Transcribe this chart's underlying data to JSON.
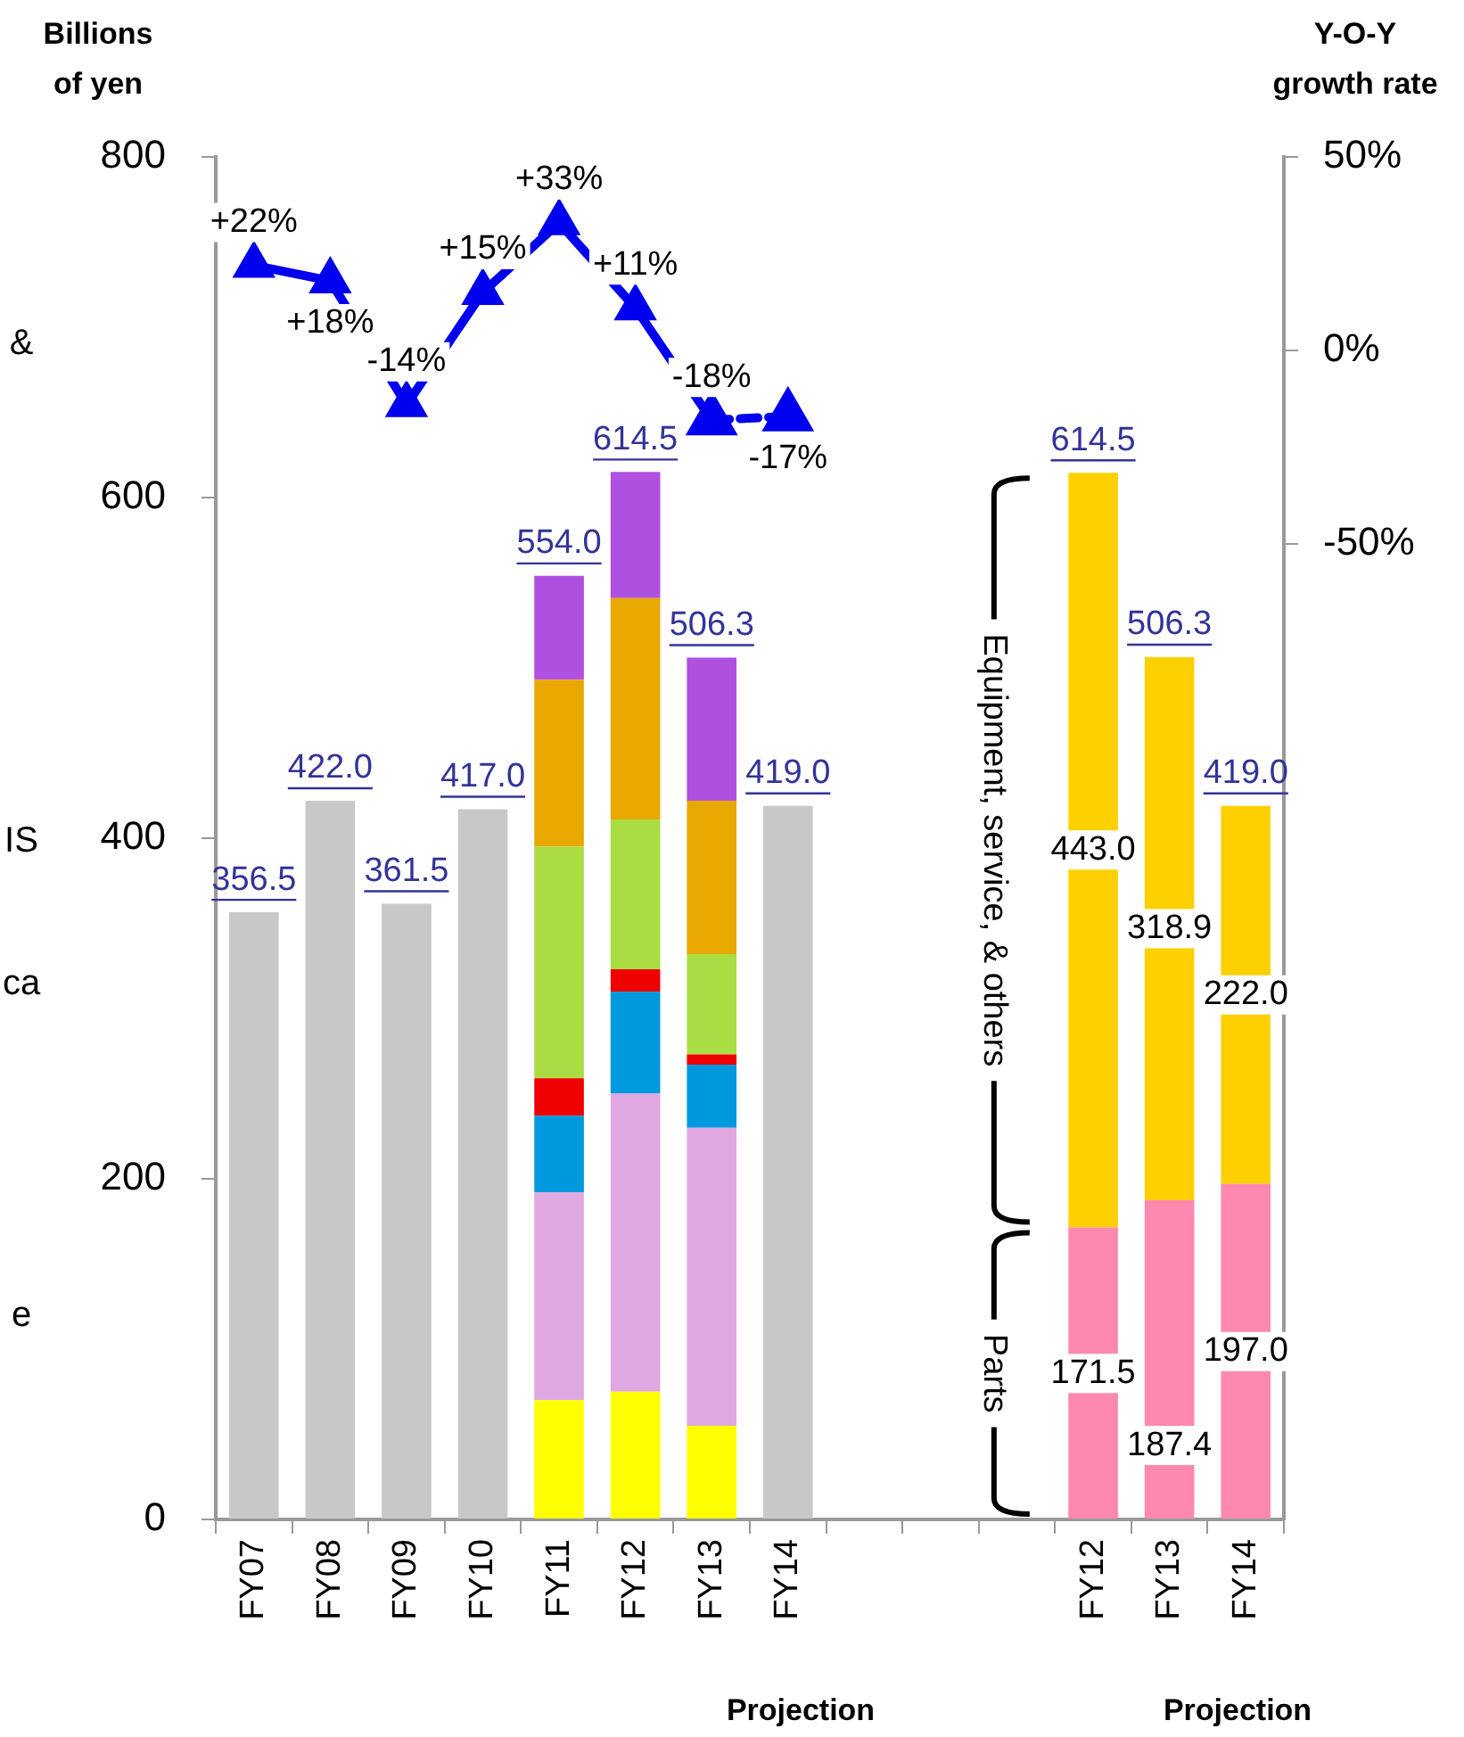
{
  "chart_data": {
    "type": "bar",
    "ylabel": "Billions of yen",
    "y2label": "Y-O-Y growth rate",
    "categories": [
      "FY07",
      "FY08",
      "FY09",
      "FY10",
      "FY11",
      "FY12",
      "FY13",
      "FY14",
      null,
      null,
      null,
      "FY12",
      "FY13",
      "FY14"
    ],
    "stacked": true,
    "series": [
      {
        "color": "#c8c8c8",
        "values": [
          356.5,
          422.0,
          361.5,
          417.0,
          null,
          null,
          null,
          419.0,
          null,
          null,
          null,
          null,
          null,
          null
        ]
      },
      {
        "color": "#ffff00",
        "values": [
          null,
          null,
          null,
          null,
          70,
          75,
          55,
          null,
          null,
          null,
          null,
          null,
          null,
          null
        ]
      },
      {
        "color": "#e0a8e0",
        "values": [
          null,
          null,
          null,
          null,
          122,
          175,
          175,
          null,
          null,
          null,
          null,
          null,
          null,
          null
        ]
      },
      {
        "color": "#0099dd",
        "values": [
          null,
          null,
          null,
          null,
          45,
          60,
          37,
          null,
          null,
          null,
          null,
          null,
          null,
          null
        ]
      },
      {
        "color": "#ee0000",
        "values": [
          null,
          null,
          null,
          null,
          22,
          13,
          6,
          null,
          null,
          null,
          null,
          null,
          null,
          null
        ]
      },
      {
        "color": "#aadd44",
        "values": [
          null,
          null,
          null,
          null,
          136,
          88,
          59,
          null,
          null,
          null,
          null,
          null,
          null,
          null
        ]
      },
      {
        "color": "#e8a800",
        "values": [
          null,
          null,
          null,
          null,
          98,
          130,
          90,
          null,
          null,
          null,
          null,
          null,
          null,
          null
        ]
      },
      {
        "color": "#b050e0",
        "values": [
          null,
          null,
          null,
          null,
          61,
          74,
          84,
          null,
          null,
          null,
          null,
          null,
          null,
          null
        ]
      },
      {
        "name": "Parts",
        "color": "#ff88b0",
        "values": [
          null,
          null,
          null,
          null,
          null,
          null,
          null,
          null,
          null,
          null,
          null,
          171.5,
          187.4,
          197.0
        ],
        "value_labels": [
          null,
          null,
          null,
          null,
          null,
          null,
          null,
          null,
          null,
          null,
          null,
          "171.5",
          "187.4",
          "197.0"
        ]
      },
      {
        "name": "Equipment, service, & others",
        "color": "#ffd000",
        "values": [
          null,
          null,
          null,
          null,
          null,
          null,
          null,
          null,
          null,
          null,
          null,
          443.0,
          318.9,
          222.0
        ],
        "value_labels": [
          null,
          null,
          null,
          null,
          null,
          null,
          null,
          null,
          null,
          null,
          null,
          "443.0",
          "318.9",
          "222.0"
        ]
      },
      {
        "type": "line",
        "axis": "y2",
        "color": "#0000ee",
        "values": [
          22,
          18,
          -14,
          15,
          33,
          11,
          -18,
          null,
          null,
          null,
          null,
          null,
          null,
          null
        ],
        "value_labels": [
          "+22%",
          "+18%",
          "-14%",
          "+15%",
          "+33%",
          "+11%",
          "-18%",
          null,
          null,
          null,
          null,
          null,
          null,
          null
        ]
      },
      {
        "type": "line",
        "axis": "y2",
        "color": "#0000ee",
        "line_style": "dashed",
        "values": [
          null,
          null,
          null,
          null,
          null,
          null,
          -18,
          -17,
          null,
          null,
          null,
          null,
          null,
          null
        ],
        "value_labels": [
          null,
          null,
          null,
          null,
          null,
          null,
          null,
          "-17%",
          null,
          null,
          null,
          null,
          null,
          null
        ]
      }
    ],
    "totals": [
      "356.5",
      "422.0",
      "361.5",
      "417.0",
      "554.0",
      "614.5",
      "506.3",
      "419.0",
      null,
      null,
      null,
      "614.5",
      "506.3",
      "419.0"
    ],
    "ylim": [
      0,
      800
    ],
    "yticks": [
      0,
      200,
      400,
      600,
      800
    ],
    "y2lim": [
      -302,
      50
    ],
    "y2ticks": [
      {
        "value": 50,
        "label": "50%"
      },
      {
        "value": 0,
        "label": "0%"
      },
      {
        "value": -50,
        "label": "-50%"
      }
    ],
    "marker": "triangle",
    "grid": false,
    "legend": false,
    "annotations": [
      "&",
      "IS",
      "ca",
      "e",
      "Projection",
      "Projection"
    ]
  }
}
